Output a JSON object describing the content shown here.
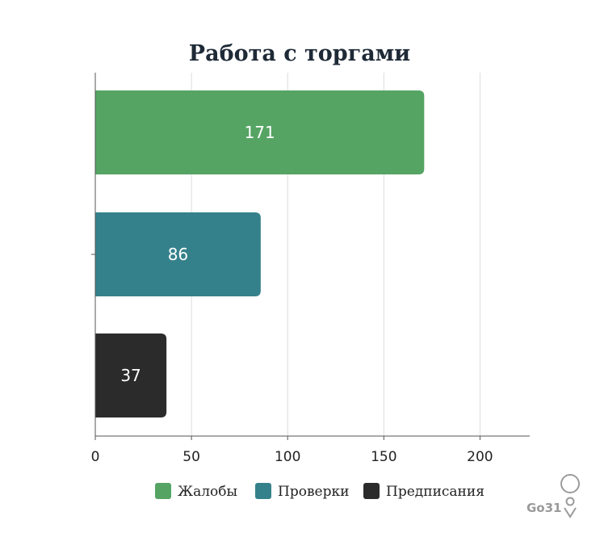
{
  "chart_data": {
    "type": "bar",
    "orientation": "horizontal",
    "title": "Работа с торгами",
    "categories": [
      "Жалобы",
      "Проверки",
      "Предписания"
    ],
    "values": [
      171,
      86,
      37
    ],
    "data_labels": [
      "171",
      "86",
      "37"
    ],
    "colors": [
      "#55a464",
      "#35818b",
      "#2b2b2b"
    ],
    "xlim": [
      0,
      225
    ],
    "xticks": [
      0,
      50,
      100,
      150,
      200
    ],
    "xtick_labels": [
      "0",
      "50",
      "100",
      "150",
      "200"
    ],
    "grid": true,
    "legend": {
      "placement": "bottom",
      "items": [
        {
          "label": "Жалобы",
          "color": "#55a464"
        },
        {
          "label": "Проверки",
          "color": "#35818b"
        },
        {
          "label": "Предписания",
          "color": "#2b2b2b"
        }
      ]
    }
  },
  "watermark": {
    "text": "Go31",
    "icon": "map-pin-icon"
  }
}
